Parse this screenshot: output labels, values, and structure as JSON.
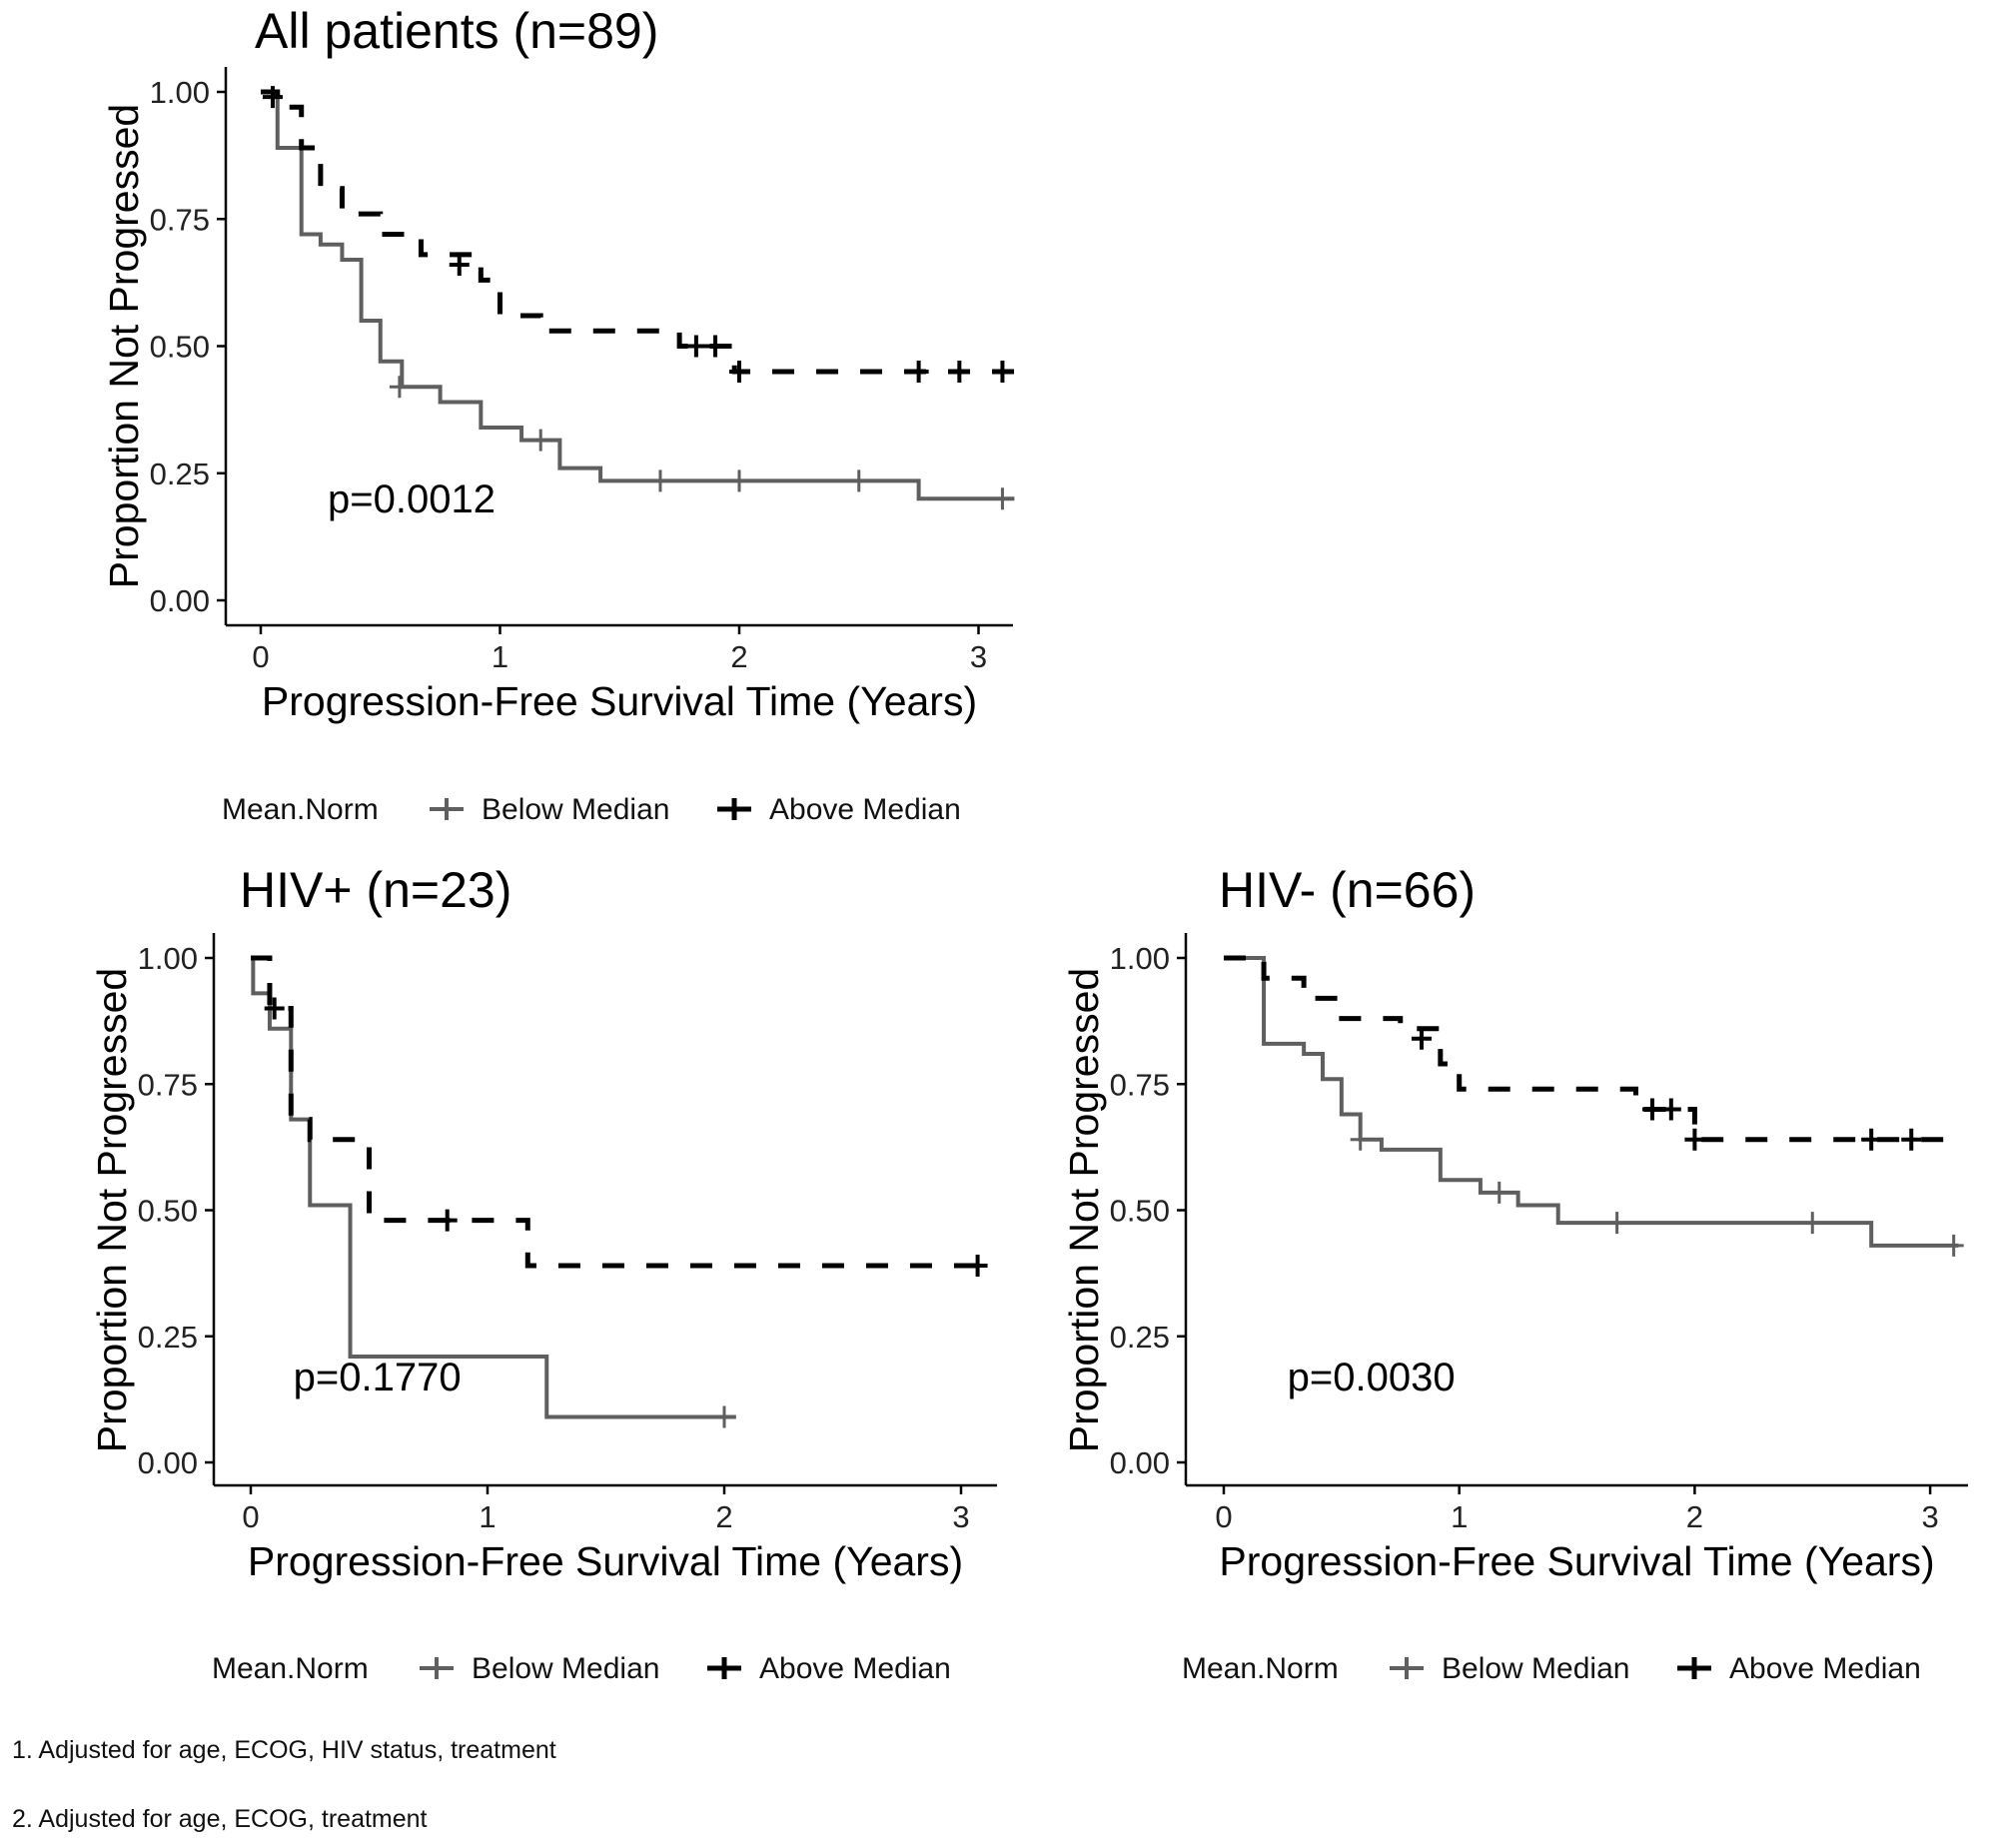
{
  "chart_data": [
    {
      "type": "line",
      "subtype": "kaplan-meier step",
      "title": "All patients (n=89)",
      "xlabel": "Progression-Free Survival Time (Years)",
      "ylabel": "Proportion Not Progressed",
      "xlim": [
        0,
        3.15
      ],
      "ylim": [
        0,
        1
      ],
      "xticks": [
        "0",
        "1",
        "2",
        "3"
      ],
      "yticks": [
        "0.00",
        "0.25",
        "0.50",
        "0.75",
        "1.00"
      ],
      "annotation": "p=0.0012",
      "annotation_pos": [
        0.28,
        0.2
      ],
      "legend": {
        "title": "Mean.Norm",
        "placement": "bottom"
      },
      "grid": false,
      "series": [
        {
          "name": "Below Median",
          "color": "#5f5f5f",
          "dash": false,
          "steps": [
            [
              0,
              1.0
            ],
            [
              0.07,
              0.89
            ],
            [
              0.17,
              0.72
            ],
            [
              0.25,
              0.7
            ],
            [
              0.34,
              0.67
            ],
            [
              0.42,
              0.55
            ],
            [
              0.5,
              0.47
            ],
            [
              0.59,
              0.42
            ],
            [
              0.75,
              0.39
            ],
            [
              0.92,
              0.34
            ],
            [
              1.09,
              0.315
            ],
            [
              1.25,
              0.26
            ],
            [
              1.42,
              0.235
            ],
            [
              2.75,
              0.2
            ]
          ],
          "end": 3.15,
          "censors": [
            [
              0.58,
              0.42
            ],
            [
              1.17,
              0.315
            ],
            [
              1.67,
              0.235
            ],
            [
              2.0,
              0.235
            ],
            [
              2.5,
              0.235
            ],
            [
              3.1,
              0.2
            ]
          ]
        },
        {
          "name": "Above Median",
          "color": "#000000",
          "dash": true,
          "steps": [
            [
              0,
              1.0
            ],
            [
              0.07,
              0.97
            ],
            [
              0.17,
              0.89
            ],
            [
              0.25,
              0.81
            ],
            [
              0.34,
              0.76
            ],
            [
              0.5,
              0.72
            ],
            [
              0.67,
              0.68
            ],
            [
              0.92,
              0.63
            ],
            [
              1.0,
              0.56
            ],
            [
              1.17,
              0.53
            ],
            [
              1.75,
              0.5
            ],
            [
              1.98,
              0.45
            ]
          ],
          "end": 3.15,
          "censors": [
            [
              0.05,
              0.99
            ],
            [
              0.83,
              0.66
            ],
            [
              1.82,
              0.5
            ],
            [
              1.9,
              0.5
            ],
            [
              2.0,
              0.45
            ],
            [
              2.75,
              0.45
            ],
            [
              2.92,
              0.45
            ],
            [
              3.1,
              0.45
            ]
          ]
        }
      ]
    },
    {
      "type": "line",
      "subtype": "kaplan-meier step",
      "title": "HIV+ (n=23)",
      "xlabel": "Progression-Free Survival Time (Years)",
      "ylabel": "Proportion Not Progressed",
      "xlim": [
        0,
        3.12
      ],
      "ylim": [
        0,
        1
      ],
      "xticks": [
        "0",
        "1",
        "2",
        "3"
      ],
      "yticks": [
        "0.00",
        "0.25",
        "0.50",
        "0.75",
        "1.00"
      ],
      "annotation": "p=0.1770",
      "annotation_pos": [
        0.18,
        0.17
      ],
      "legend": {
        "title": "Mean.Norm",
        "placement": "bottom"
      },
      "grid": false,
      "series": [
        {
          "name": "Below Median",
          "color": "#5f5f5f",
          "dash": false,
          "steps": [
            [
              0,
              1.0
            ],
            [
              0.01,
              0.93
            ],
            [
              0.08,
              0.86
            ],
            [
              0.17,
              0.68
            ],
            [
              0.25,
              0.51
            ],
            [
              0.42,
              0.21
            ],
            [
              1.25,
              0.09
            ]
          ],
          "end": 2.05,
          "censors": [
            [
              2.0,
              0.09
            ]
          ]
        },
        {
          "name": "Above Median",
          "color": "#000000",
          "dash": true,
          "steps": [
            [
              0,
              1.0
            ],
            [
              0.08,
              0.9
            ],
            [
              0.17,
              0.68
            ],
            [
              0.25,
              0.64
            ],
            [
              0.5,
              0.48
            ],
            [
              1.17,
              0.39
            ]
          ],
          "end": 3.12,
          "censors": [
            [
              0.1,
              0.9
            ],
            [
              0.83,
              0.48
            ],
            [
              3.07,
              0.39
            ]
          ]
        }
      ]
    },
    {
      "type": "line",
      "subtype": "kaplan-meier step",
      "title": "HIV- (n=66)",
      "xlabel": "Progression-Free Survival Time (Years)",
      "ylabel": "Proportion Not Progressed",
      "xlim": [
        0,
        3.12
      ],
      "ylim": [
        0,
        1
      ],
      "xticks": [
        "0",
        "1",
        "2",
        "3"
      ],
      "yticks": [
        "0.00",
        "0.25",
        "0.50",
        "0.75",
        "1.00"
      ],
      "annotation": "p=0.0030",
      "annotation_pos": [
        0.27,
        0.17
      ],
      "legend": {
        "title": "Mean.Norm",
        "placement": "bottom"
      },
      "grid": false,
      "series": [
        {
          "name": "Below Median",
          "color": "#5f5f5f",
          "dash": false,
          "steps": [
            [
              0,
              1.0
            ],
            [
              0.17,
              0.83
            ],
            [
              0.34,
              0.81
            ],
            [
              0.42,
              0.76
            ],
            [
              0.5,
              0.69
            ],
            [
              0.58,
              0.64
            ],
            [
              0.67,
              0.62
            ],
            [
              0.92,
              0.56
            ],
            [
              1.09,
              0.535
            ],
            [
              1.25,
              0.51
            ],
            [
              1.42,
              0.475
            ],
            [
              2.75,
              0.43
            ]
          ],
          "end": 3.12,
          "censors": [
            [
              0.58,
              0.64
            ],
            [
              1.17,
              0.535
            ],
            [
              1.67,
              0.475
            ],
            [
              2.5,
              0.475
            ],
            [
              3.1,
              0.43
            ]
          ]
        },
        {
          "name": "Above Median",
          "color": "#000000",
          "dash": true,
          "steps": [
            [
              0,
              1.0
            ],
            [
              0.17,
              0.96
            ],
            [
              0.34,
              0.92
            ],
            [
              0.5,
              0.88
            ],
            [
              0.75,
              0.86
            ],
            [
              0.92,
              0.79
            ],
            [
              1.0,
              0.74
            ],
            [
              1.75,
              0.7
            ],
            [
              2.0,
              0.64
            ]
          ],
          "end": 3.12,
          "censors": [
            [
              0.84,
              0.84
            ],
            [
              1.82,
              0.7
            ],
            [
              1.9,
              0.7
            ],
            [
              2.0,
              0.64
            ],
            [
              2.75,
              0.64
            ],
            [
              2.92,
              0.64
            ]
          ]
        }
      ]
    }
  ],
  "footnotes": [
    "1. Adjusted for age, ECOG, HIV status, treatment",
    "2. Adjusted for age, ECOG, treatment"
  ]
}
